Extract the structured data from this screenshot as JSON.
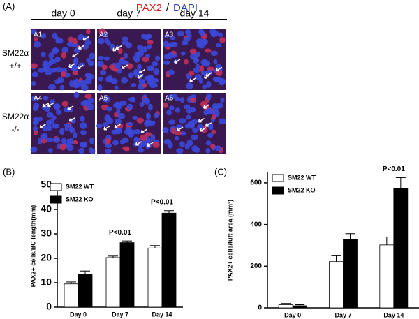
{
  "panel_a": {
    "label": "(A)",
    "title": [
      "PAX2",
      "/",
      "DAPI"
    ],
    "columns": [
      "day 0",
      "day 7",
      "day 14"
    ],
    "rows": [
      [
        "SM22α",
        "+/+"
      ],
      [
        "SM22α",
        "-/-"
      ]
    ],
    "images": [
      "A1",
      "A2",
      "A3",
      "A4",
      "A5",
      "A6"
    ]
  },
  "chart_data": [
    {
      "type": "bar",
      "label": "(B)",
      "y_label": "PAX2+ cells/BC length(mm)",
      "categories": [
        "Day 0",
        "Day 7",
        "Day 14"
      ],
      "series": [
        {
          "name": "SM22 WT",
          "color": "#ffffff",
          "values": [
            9.5,
            20.3,
            24.2
          ],
          "errors": [
            0.8,
            0.6,
            1.0
          ]
        },
        {
          "name": "SM22 KO",
          "color": "#000000",
          "values": [
            13.6,
            26.4,
            38.5
          ],
          "errors": [
            1.2,
            0.7,
            1.0
          ]
        }
      ],
      "ylim": [
        0,
        50
      ],
      "yticks": [
        0,
        10,
        20,
        30,
        40,
        50
      ],
      "annotations": [
        {
          "text": "P<0.01",
          "x": "Day 7"
        },
        {
          "text": "P<0.01",
          "x": "Day 14"
        }
      ]
    },
    {
      "type": "bar",
      "label": "(C)",
      "y_label": "PAX2+ cells/tuft area (mm²)",
      "categories": [
        "Day 0",
        "Day 7",
        "Day 14"
      ],
      "series": [
        {
          "name": "SM22 WT",
          "color": "#ffffff",
          "values": [
            15,
            222,
            302
          ],
          "errors": [
            6,
            28,
            38
          ]
        },
        {
          "name": "SM22 KO",
          "color": "#000000",
          "values": [
            10,
            330,
            573
          ],
          "errors": [
            5,
            26,
            52
          ]
        }
      ],
      "ylim": [
        0,
        650
      ],
      "yticks": [
        0,
        200,
        400,
        600
      ],
      "annotations": [
        {
          "text": "P<0.01",
          "x": "Day 14"
        }
      ]
    }
  ]
}
